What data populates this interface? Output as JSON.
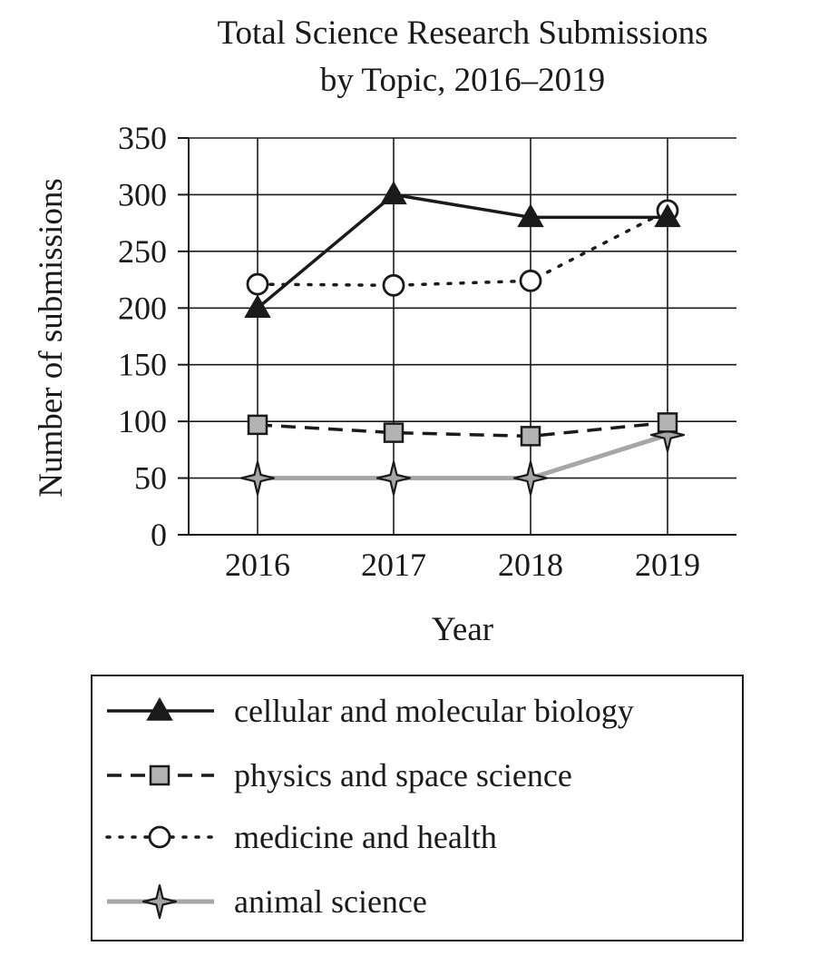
{
  "chart_data": {
    "type": "line",
    "title": "Total Science Research Submissions",
    "subtitle": "by Topic, 2016–2019",
    "xlabel": "Year",
    "ylabel": "Number of submissions",
    "categories": [
      "2016",
      "2017",
      "2018",
      "2019"
    ],
    "ylim": [
      0,
      350
    ],
    "yticks": [
      0,
      50,
      100,
      150,
      200,
      250,
      300,
      350
    ],
    "grid": true,
    "legend_position": "bottom",
    "series": [
      {
        "name": "cellular and molecular biology",
        "values": [
          200,
          300,
          280,
          280
        ],
        "line_style": "solid",
        "marker": "triangle",
        "line_color": "#1a1a1a",
        "marker_fill": "#1a1a1a"
      },
      {
        "name": "physics and space science",
        "values": [
          97,
          90,
          87,
          99
        ],
        "line_style": "dashed",
        "marker": "square",
        "line_color": "#1a1a1a",
        "marker_fill": "#b3b3b3"
      },
      {
        "name": "medicine and health",
        "values": [
          221,
          220,
          224,
          286
        ],
        "line_style": "dotted",
        "marker": "circle",
        "line_color": "#1a1a1a",
        "marker_fill": "#ffffff"
      },
      {
        "name": "animal science",
        "values": [
          50,
          50,
          50,
          88
        ],
        "line_style": "solid",
        "marker": "star4",
        "line_color": "#a6a6a6",
        "marker_fill": "#a6a6a6"
      }
    ]
  }
}
